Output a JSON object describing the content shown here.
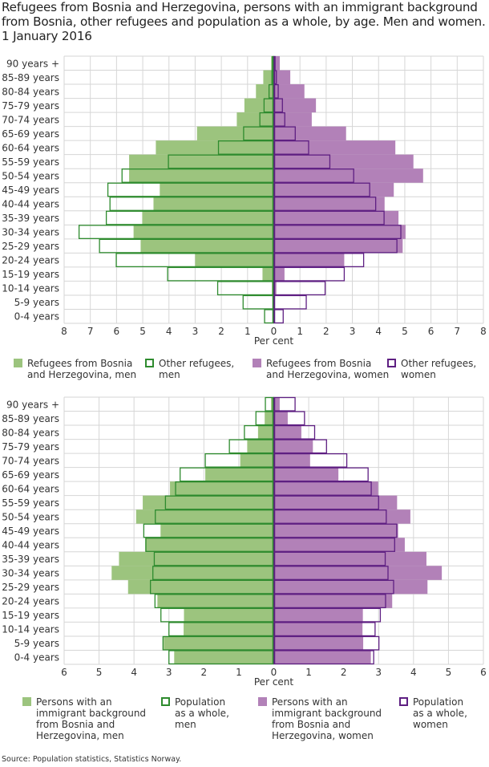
{
  "title": "Refugees from Bosnia and Herzegovina, persons with an immigrant background from Bosnia, other refugees and population as a whole, by age. Men and women. 1 January 2016",
  "source": "Source: Population statistics, Statistics Norway.",
  "colors": {
    "green_fill": "#9cc47e",
    "green_line": "#2e8b2e",
    "purple_fill": "#b281b8",
    "purple_line": "#5e1f82",
    "grid": "#d6d6d6"
  },
  "chart_data": [
    {
      "type": "bar",
      "orientation": "horizontal-pyramid",
      "categories": [
        "90 years +",
        "85-89 years",
        "80-84 years",
        "75-79 years",
        "70-74 years",
        "65-69 years",
        "60-64 years",
        "55-59 years",
        "50-54 years",
        "45-49 years",
        "40-44 years",
        "35-39 years",
        "30-34 years",
        "25-29 years",
        "20-24 years",
        "15-19 years",
        "10-14 years",
        "5-9 years",
        "0-4 years"
      ],
      "xlabel": "Per cent",
      "xlim": [
        -8,
        8
      ],
      "xticks": [
        "8",
        "7",
        "6",
        "5",
        "4",
        "3",
        "2",
        "1",
        "0",
        "1",
        "2",
        "3",
        "4",
        "5",
        "6",
        "7",
        "8"
      ],
      "grid": true,
      "legend_placement": "bottom",
      "series": [
        {
          "name": "Refugees from Bosnia and Herzegovina, men",
          "side": "left",
          "style": "filled",
          "values": [
            0.1,
            0.4,
            0.68,
            1.12,
            1.41,
            2.93,
            4.5,
            5.52,
            5.52,
            4.35,
            4.59,
            5.02,
            5.35,
            5.08,
            3.0,
            0.43,
            0.07,
            0,
            0
          ]
        },
        {
          "name": "Other refugees, men",
          "side": "left",
          "style": "outline",
          "values": [
            0.05,
            0.07,
            0.18,
            0.37,
            0.53,
            1.15,
            2.11,
            4.02,
            5.79,
            6.33,
            6.25,
            6.39,
            7.43,
            6.65,
            6.01,
            4.05,
            2.14,
            1.17,
            0.35
          ]
        },
        {
          "name": "Refugees from Bosnia and Herzegovina, women",
          "side": "right",
          "style": "filled",
          "values": [
            0.23,
            0.63,
            1.17,
            1.61,
            1.45,
            2.76,
            4.64,
            5.33,
            5.7,
            4.58,
            4.23,
            4.76,
            5.03,
            4.92,
            2.69,
            0.41,
            0.1,
            0,
            0
          ]
        },
        {
          "name": "Other refugees, women",
          "side": "right",
          "style": "outline",
          "values": [
            0.05,
            0.1,
            0.17,
            0.33,
            0.42,
            0.82,
            1.33,
            2.14,
            3.05,
            3.66,
            3.89,
            4.21,
            4.85,
            4.7,
            3.43,
            2.69,
            1.96,
            1.24,
            0.36
          ]
        }
      ],
      "legend": [
        "Refugees from Bosnia\nand Herzegovina, men",
        "Other refugees,\nmen",
        "Refugees from Bosnia\nand Herzegovina, women",
        "Other refugees,\nwomen"
      ]
    },
    {
      "type": "bar",
      "orientation": "horizontal-pyramid",
      "categories": [
        "90 years +",
        "85-89 years",
        "80-84 years",
        "75-79 years",
        "70-74 years",
        "65-69 years",
        "60-64 years",
        "55-59 years",
        "50-54 years",
        "45-49 years",
        "40-44 years",
        "35-39 years",
        "30-34 years",
        "25-29 years",
        "20-24 years",
        "15-19 years",
        "10-14 years",
        "5-9 years",
        "0-4 years"
      ],
      "xlabel": "Per cent",
      "xlim": [
        -6,
        6
      ],
      "xticks": [
        "6",
        "5",
        "4",
        "3",
        "2",
        "1",
        "0",
        "1",
        "2",
        "3",
        "4",
        "5",
        "6"
      ],
      "grid": true,
      "legend_placement": "bottom",
      "series": [
        {
          "name": "Persons with an immigrant background from Bosnia and Herzegovina, men",
          "side": "left",
          "style": "filled",
          "values": [
            0.08,
            0.26,
            0.45,
            0.76,
            0.96,
            1.96,
            2.97,
            3.75,
            3.94,
            3.24,
            3.68,
            4.43,
            4.64,
            4.17,
            3.33,
            2.57,
            2.58,
            3.15,
            2.85
          ]
        },
        {
          "name": "Population as a whole, men",
          "side": "left",
          "style": "outline",
          "values": [
            0.24,
            0.51,
            0.84,
            1.27,
            1.96,
            2.68,
            2.81,
            3.1,
            3.39,
            3.72,
            3.66,
            3.42,
            3.46,
            3.53,
            3.4,
            3.23,
            3.0,
            3.17,
            3.0
          ]
        },
        {
          "name": "Persons with an immigrant background from Bosnia and Herzegovina, women",
          "side": "right",
          "style": "filled",
          "values": [
            0.17,
            0.4,
            0.79,
            1.12,
            1.04,
            1.85,
            2.99,
            3.53,
            3.91,
            3.56,
            3.75,
            4.37,
            4.81,
            4.4,
            3.39,
            2.55,
            2.54,
            2.56,
            2.78
          ]
        },
        {
          "name": "Population as a whole, women",
          "side": "right",
          "style": "outline",
          "values": [
            0.61,
            0.88,
            1.17,
            1.51,
            2.09,
            2.7,
            2.79,
            3.0,
            3.22,
            3.52,
            3.46,
            3.19,
            3.27,
            3.43,
            3.2,
            3.05,
            2.9,
            3.01,
            2.86
          ]
        }
      ],
      "legend": [
        "Persons with an\nimmigrant background\nfrom Bosnia and\nHerzegovina, men",
        "Population\nas a whole,\nmen",
        "Persons with an\nimmigrant background\nfrom Bosnia and\nHerzegovina, women",
        "Population\nas a whole,\nwomen"
      ]
    }
  ]
}
